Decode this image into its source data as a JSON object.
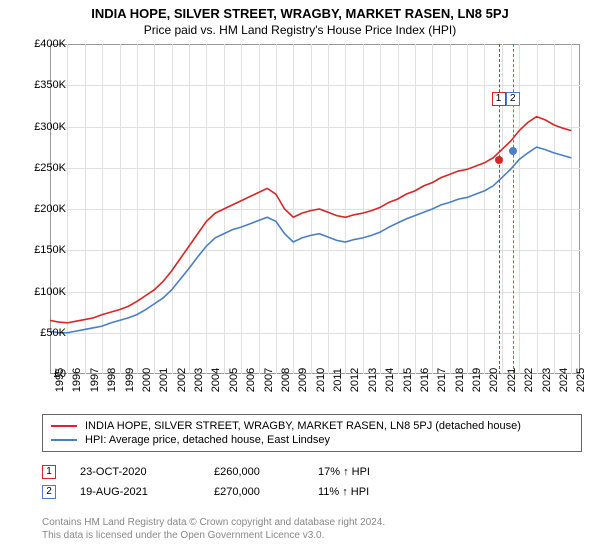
{
  "title": "INDIA HOPE, SILVER STREET, WRAGBY, MARKET RASEN, LN8 5PJ",
  "subtitle": "Price paid vs. HM Land Registry's House Price Index (HPI)",
  "chart": {
    "type": "line",
    "background_color": "#ffffff",
    "grid_color": "#e0e0e0",
    "border_color": "#999999",
    "title_fontsize": 13,
    "subtitle_fontsize": 12,
    "tick_fontsize": 11,
    "x": {
      "min": 1995,
      "max": 2025.5,
      "ticks": [
        1995,
        1996,
        1997,
        1998,
        1999,
        2000,
        2001,
        2002,
        2003,
        2004,
        2005,
        2006,
        2007,
        2008,
        2009,
        2010,
        2011,
        2012,
        2013,
        2014,
        2015,
        2016,
        2017,
        2018,
        2019,
        2020,
        2021,
        2022,
        2023,
        2024,
        2025
      ]
    },
    "y": {
      "min": 0,
      "max": 400000,
      "ticks": [
        {
          "v": 0,
          "label": "£0"
        },
        {
          "v": 50000,
          "label": "£50K"
        },
        {
          "v": 100000,
          "label": "£100K"
        },
        {
          "v": 150000,
          "label": "£150K"
        },
        {
          "v": 200000,
          "label": "£200K"
        },
        {
          "v": 250000,
          "label": "£250K"
        },
        {
          "v": 300000,
          "label": "£300K"
        },
        {
          "v": 350000,
          "label": "£350K"
        },
        {
          "v": 400000,
          "label": "£400K"
        }
      ]
    },
    "series": [
      {
        "name": "INDIA HOPE, SILVER STREET, WRAGBY, MARKET RASEN, LN8 5PJ (detached house)",
        "color": "#d62728",
        "line_width": 1.6,
        "data": [
          [
            1995,
            65000
          ],
          [
            1995.5,
            63000
          ],
          [
            1996,
            62000
          ],
          [
            1996.5,
            64000
          ],
          [
            1997,
            66000
          ],
          [
            1997.5,
            68000
          ],
          [
            1998,
            72000
          ],
          [
            1998.5,
            75000
          ],
          [
            1999,
            78000
          ],
          [
            1999.5,
            82000
          ],
          [
            2000,
            88000
          ],
          [
            2000.5,
            95000
          ],
          [
            2001,
            102000
          ],
          [
            2001.5,
            112000
          ],
          [
            2002,
            125000
          ],
          [
            2002.5,
            140000
          ],
          [
            2003,
            155000
          ],
          [
            2003.5,
            170000
          ],
          [
            2004,
            185000
          ],
          [
            2004.5,
            195000
          ],
          [
            2005,
            200000
          ],
          [
            2005.5,
            205000
          ],
          [
            2006,
            210000
          ],
          [
            2006.5,
            215000
          ],
          [
            2007,
            220000
          ],
          [
            2007.5,
            225000
          ],
          [
            2008,
            218000
          ],
          [
            2008.5,
            200000
          ],
          [
            2009,
            190000
          ],
          [
            2009.5,
            195000
          ],
          [
            2010,
            198000
          ],
          [
            2010.5,
            200000
          ],
          [
            2011,
            196000
          ],
          [
            2011.5,
            192000
          ],
          [
            2012,
            190000
          ],
          [
            2012.5,
            193000
          ],
          [
            2013,
            195000
          ],
          [
            2013.5,
            198000
          ],
          [
            2014,
            202000
          ],
          [
            2014.5,
            208000
          ],
          [
            2015,
            212000
          ],
          [
            2015.5,
            218000
          ],
          [
            2016,
            222000
          ],
          [
            2016.5,
            228000
          ],
          [
            2017,
            232000
          ],
          [
            2017.5,
            238000
          ],
          [
            2018,
            242000
          ],
          [
            2018.5,
            246000
          ],
          [
            2019,
            248000
          ],
          [
            2019.5,
            252000
          ],
          [
            2020,
            256000
          ],
          [
            2020.5,
            262000
          ],
          [
            2021,
            272000
          ],
          [
            2021.5,
            282000
          ],
          [
            2022,
            295000
          ],
          [
            2022.5,
            305000
          ],
          [
            2023,
            312000
          ],
          [
            2023.5,
            308000
          ],
          [
            2024,
            302000
          ],
          [
            2024.5,
            298000
          ],
          [
            2025,
            295000
          ]
        ]
      },
      {
        "name": "HPI: Average price, detached house, East Lindsey",
        "color": "#4a7fc4",
        "line_width": 1.6,
        "data": [
          [
            1995,
            52000
          ],
          [
            1995.5,
            50000
          ],
          [
            1996,
            50000
          ],
          [
            1996.5,
            52000
          ],
          [
            1997,
            54000
          ],
          [
            1997.5,
            56000
          ],
          [
            1998,
            58000
          ],
          [
            1998.5,
            62000
          ],
          [
            1999,
            65000
          ],
          [
            1999.5,
            68000
          ],
          [
            2000,
            72000
          ],
          [
            2000.5,
            78000
          ],
          [
            2001,
            85000
          ],
          [
            2001.5,
            92000
          ],
          [
            2002,
            102000
          ],
          [
            2002.5,
            115000
          ],
          [
            2003,
            128000
          ],
          [
            2003.5,
            142000
          ],
          [
            2004,
            155000
          ],
          [
            2004.5,
            165000
          ],
          [
            2005,
            170000
          ],
          [
            2005.5,
            175000
          ],
          [
            2006,
            178000
          ],
          [
            2006.5,
            182000
          ],
          [
            2007,
            186000
          ],
          [
            2007.5,
            190000
          ],
          [
            2008,
            185000
          ],
          [
            2008.5,
            170000
          ],
          [
            2009,
            160000
          ],
          [
            2009.5,
            165000
          ],
          [
            2010,
            168000
          ],
          [
            2010.5,
            170000
          ],
          [
            2011,
            166000
          ],
          [
            2011.5,
            162000
          ],
          [
            2012,
            160000
          ],
          [
            2012.5,
            163000
          ],
          [
            2013,
            165000
          ],
          [
            2013.5,
            168000
          ],
          [
            2014,
            172000
          ],
          [
            2014.5,
            178000
          ],
          [
            2015,
            183000
          ],
          [
            2015.5,
            188000
          ],
          [
            2016,
            192000
          ],
          [
            2016.5,
            196000
          ],
          [
            2017,
            200000
          ],
          [
            2017.5,
            205000
          ],
          [
            2018,
            208000
          ],
          [
            2018.5,
            212000
          ],
          [
            2019,
            214000
          ],
          [
            2019.5,
            218000
          ],
          [
            2020,
            222000
          ],
          [
            2020.5,
            228000
          ],
          [
            2021,
            238000
          ],
          [
            2021.5,
            248000
          ],
          [
            2022,
            260000
          ],
          [
            2022.5,
            268000
          ],
          [
            2023,
            275000
          ],
          [
            2023.5,
            272000
          ],
          [
            2024,
            268000
          ],
          [
            2024.5,
            265000
          ],
          [
            2025,
            262000
          ]
        ]
      }
    ],
    "events": [
      {
        "n": "1",
        "x": 2020.81,
        "date": "23-OCT-2020",
        "price": "£260,000",
        "price_v": 260000,
        "pct": "17% ↑ HPI",
        "color": "#d62728"
      },
      {
        "n": "2",
        "x": 2021.63,
        "date": "19-AUG-2021",
        "price": "£270,000",
        "price_v": 270000,
        "pct": "11% ↑ HPI",
        "color": "#4a7fc4"
      }
    ]
  },
  "legend": {
    "border_color": "#666666",
    "fontsize": 11
  },
  "footer": {
    "line1": "Contains HM Land Registry data © Crown copyright and database right 2024.",
    "line2": "This data is licensed under the Open Government Licence v3.0.",
    "color": "#888888",
    "fontsize": 10
  }
}
